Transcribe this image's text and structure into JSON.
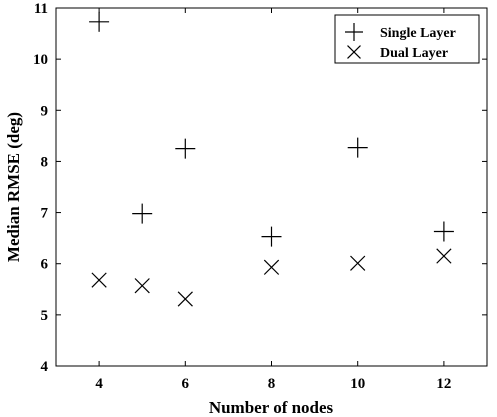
{
  "chart_data": {
    "type": "scatter",
    "title": "",
    "xlabel": "Number of nodes",
    "ylabel": "Median RMSE (deg)",
    "categories": [
      "4",
      "5",
      "6",
      "8",
      "10",
      "12"
    ],
    "x": [
      4,
      5,
      6,
      8,
      10,
      12
    ],
    "xlim": [
      3,
      13
    ],
    "ylim": [
      4,
      11
    ],
    "xticks": [
      "4",
      "6",
      "8",
      "10",
      "12"
    ],
    "xtick_values": [
      4,
      6,
      8,
      10,
      12
    ],
    "yticks": [
      "4",
      "5",
      "6",
      "7",
      "8",
      "9",
      "10",
      "11"
    ],
    "ytick_values": [
      4,
      5,
      6,
      7,
      8,
      9,
      10,
      11
    ],
    "grid": false,
    "legend_position": "top-right",
    "series": [
      {
        "name": "Single Layer",
        "marker": "plus",
        "values": [
          10.73,
          6.98,
          8.25,
          6.53,
          8.27,
          6.63
        ]
      },
      {
        "name": "Dual Layer",
        "marker": "cross",
        "values": [
          5.68,
          5.57,
          5.31,
          5.93,
          6.01,
          6.15
        ]
      }
    ],
    "colors": {
      "marker": "#000000",
      "axes": "#000000"
    }
  }
}
